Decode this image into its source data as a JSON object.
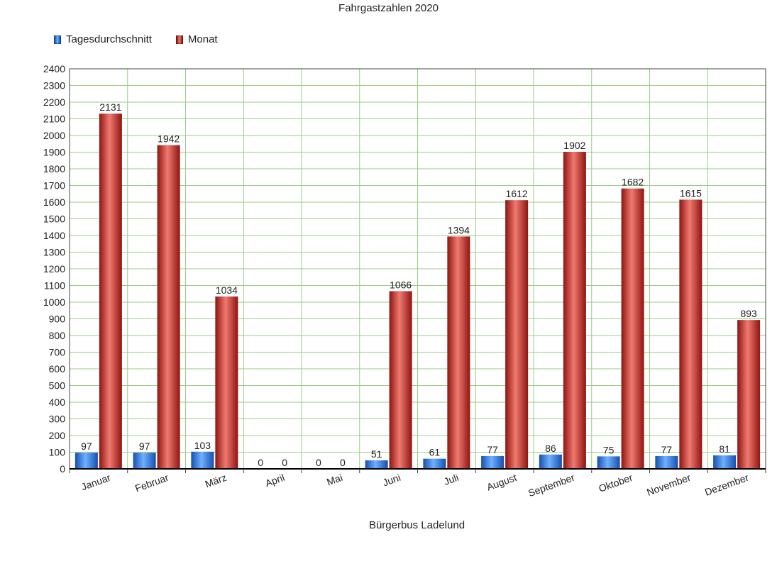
{
  "chart_data": {
    "type": "bar",
    "title": "Fahrgastzahlen 2020",
    "xlabel": "Bürgerbus Ladelund",
    "ylabel": "",
    "ylim": [
      0,
      2400
    ],
    "ytick_step": 100,
    "grid": true,
    "legend_position": "top-left",
    "categories": [
      "Januar",
      "Februar",
      "März",
      "April",
      "Mai",
      "Juni",
      "Juli",
      "August",
      "September",
      "Oktober",
      "November",
      "Dezember"
    ],
    "series": [
      {
        "name": "Tagesdurchschnitt",
        "color": "#1f6fd6",
        "values": [
          97,
          97,
          103,
          0,
          0,
          51,
          61,
          77,
          86,
          75,
          77,
          81
        ]
      },
      {
        "name": "Monat",
        "color": "#c0201a",
        "values": [
          2131,
          1942,
          1034,
          0,
          0,
          1066,
          1394,
          1612,
          1902,
          1682,
          1615,
          893
        ]
      }
    ]
  },
  "colors": {
    "grid": "#9ecb8a",
    "axis": "#000000",
    "blue_light": "#6fb0ff",
    "blue_dark": "#1450b0",
    "red_light": "#f07a70",
    "red_dark": "#8e1410"
  }
}
